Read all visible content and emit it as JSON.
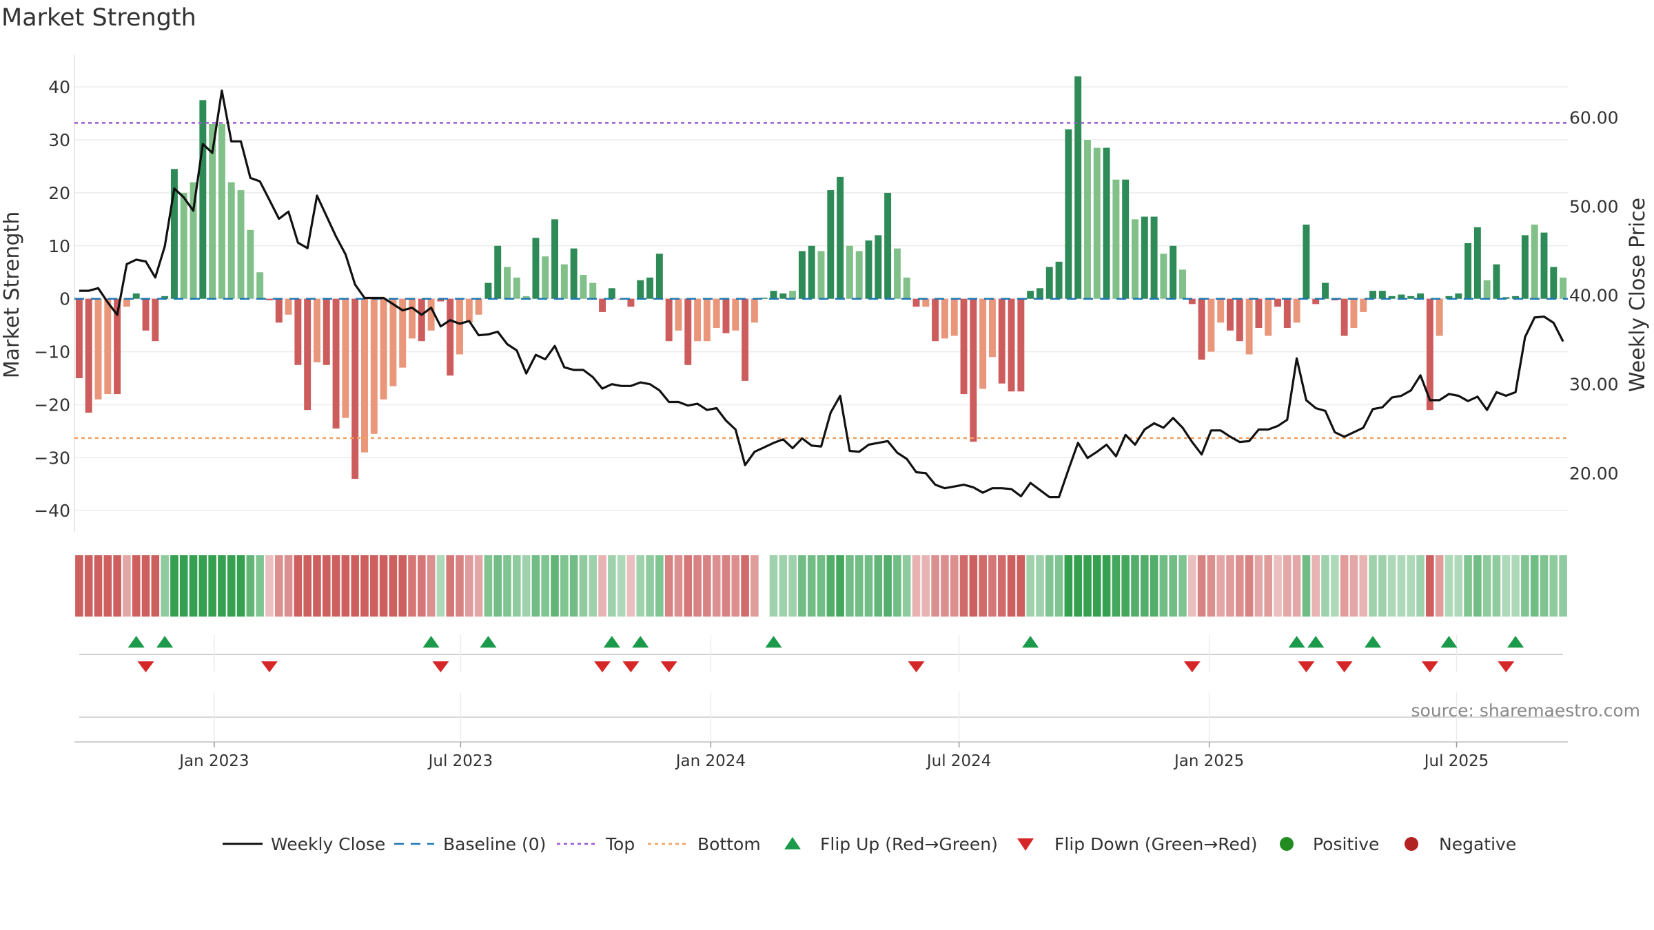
{
  "chart_data": {
    "type": "bar",
    "title": "Market Strength",
    "ylabel": "Market Strength",
    "y2label": "Weekly Close Price",
    "source": "source: sharemaestro.com",
    "ylim": [
      -44,
      46
    ],
    "y2lim": [
      13.4,
      67.0
    ],
    "yticks": [
      "40",
      "30",
      "20",
      "10",
      "0",
      "−10",
      "−20",
      "−30",
      "−40"
    ],
    "yticks_values": [
      40,
      30,
      20,
      10,
      0,
      -10,
      -20,
      -30,
      -40
    ],
    "y2ticks": [
      "60.00",
      "50.00",
      "40.00",
      "30.00",
      "20.00"
    ],
    "y2ticks_values": [
      60,
      50,
      40,
      30,
      20
    ],
    "xticks": [
      "Jan 2023",
      "Jul 2023",
      "Jan 2024",
      "Jul 2024",
      "Jan 2025",
      "Jul 2025"
    ],
    "xticks_index": [
      14.2,
      40.1,
      66.4,
      92.5,
      118.8,
      144.8
    ],
    "top_line": 33.2,
    "bottom_line": -26.3,
    "baseline": 0,
    "colors": {
      "pos_strong": "#2e8b57",
      "pos_weak": "#82c08a",
      "neg_strong": "#cd5c5c",
      "neg_weak": "#e9967a",
      "close": "#111111",
      "baseline": "#1f77b4",
      "top": "#9b59d0",
      "bottom": "#f0a060",
      "flip_up": "#1a9a4a",
      "flip_down": "#d62728",
      "positive": "#228b22",
      "negative": "#b22222"
    },
    "strength": [
      -15,
      -21.5,
      -19,
      -18,
      -18,
      -1.5,
      1,
      -6,
      -8,
      0.5,
      24.5,
      20,
      22,
      37.5,
      33,
      33,
      22,
      20.5,
      13,
      5,
      -0.3,
      -4.5,
      -3,
      -12.5,
      -21,
      -12,
      -12.5,
      -24.5,
      -22.5,
      -34,
      -29,
      -25.5,
      -19,
      -16.5,
      -13,
      -7.5,
      -8,
      -6,
      -0.5,
      -14.5,
      -10.5,
      -4.5,
      -3,
      3,
      10,
      6,
      4,
      0.5,
      11.5,
      8,
      15,
      6.5,
      9.5,
      4.5,
      3,
      -2.5,
      2,
      -0.2,
      -1.5,
      3.5,
      4,
      8.5,
      -8,
      -6,
      -12.5,
      -8,
      -8,
      -5.5,
      -6.5,
      -6,
      -15.5,
      -4.5,
      0.2,
      1.5,
      1,
      1.5,
      9,
      10,
      9,
      20.5,
      23,
      10,
      9,
      11,
      12,
      20,
      9.5,
      4,
      -1.5,
      -1.5,
      -8,
      -7.5,
      -7,
      -18,
      -27,
      -17,
      -11,
      -16,
      -17.5,
      -17.5,
      1.5,
      2,
      6,
      7,
      32,
      42,
      30,
      28.5,
      28.5,
      22.5,
      22.5,
      15,
      15.5,
      15.5,
      8.5,
      10,
      5.5,
      -1,
      -11.5,
      -10,
      -4.5,
      -6,
      -8,
      -10.5,
      -5.5,
      -7,
      -1.5,
      -5.5,
      -4.5,
      14,
      -1,
      3,
      -0.3,
      -7,
      -5.5,
      -2.5,
      1.5,
      1.5,
      0.5,
      0.8,
      0.5,
      1,
      -21,
      -7,
      0.5,
      1,
      10.5,
      13.5,
      3.5,
      6.5,
      0.3,
      0.5,
      12,
      14,
      12.5,
      6,
      4
    ],
    "strong": [
      1,
      1,
      0,
      0,
      1,
      0,
      1,
      1,
      1,
      1,
      1,
      0,
      0,
      1,
      0,
      0,
      0,
      0,
      0,
      0,
      1,
      1,
      0,
      1,
      1,
      0,
      1,
      1,
      0,
      1,
      0,
      0,
      0,
      0,
      0,
      0,
      1,
      0,
      1,
      1,
      0,
      0,
      0,
      1,
      1,
      0,
      0,
      0,
      1,
      0,
      1,
      0,
      1,
      0,
      0,
      1,
      1,
      0,
      1,
      1,
      1,
      1,
      1,
      0,
      1,
      0,
      0,
      0,
      1,
      0,
      1,
      0,
      1,
      1,
      1,
      0,
      1,
      1,
      0,
      1,
      1,
      0,
      0,
      1,
      1,
      1,
      0,
      0,
      1,
      0,
      1,
      0,
      0,
      1,
      1,
      0,
      0,
      1,
      1,
      1,
      1,
      1,
      1,
      1,
      1,
      1,
      0,
      0,
      1,
      0,
      1,
      0,
      1,
      1,
      0,
      1,
      0,
      1,
      1,
      0,
      0,
      1,
      1,
      0,
      1,
      0,
      1,
      1,
      0,
      1,
      1,
      1,
      1,
      1,
      0,
      0,
      1,
      1,
      1,
      1,
      1,
      1,
      1,
      0,
      1,
      1,
      1,
      1,
      0,
      1,
      1,
      1,
      1,
      0,
      1,
      1,
      0,
      1,
      0
    ],
    "close": [
      40.5,
      40.5,
      40.8,
      39.2,
      37.8,
      43.5,
      44,
      43.8,
      42,
      45.5,
      52,
      51,
      49.5,
      57,
      56,
      63,
      57.3,
      57.3,
      53.2,
      52.8,
      50.7,
      48.6,
      49.4,
      45.9,
      45.3,
      51.2,
      48.9,
      46.6,
      44.6,
      41.2,
      39.7,
      39.7,
      39.7,
      39,
      38.3,
      38.6,
      37.8,
      38.6,
      36.5,
      37.2,
      36.8,
      37.1,
      35.5,
      35.6,
      35.9,
      34.5,
      33.8,
      31.2,
      33.3,
      32.8,
      34.3,
      31.9,
      31.6,
      31.6,
      30.8,
      29.5,
      30,
      29.8,
      29.8,
      30.2,
      30,
      29.3,
      28,
      28,
      27.6,
      27.8,
      27.1,
      27.3,
      25.9,
      24.9,
      20.9,
      22.4,
      22.9,
      23.4,
      23.8,
      22.8,
      23.9,
      23.1,
      23,
      26.8,
      28.7,
      22.5,
      22.4,
      23.2,
      23.4,
      23.6,
      22.3,
      21.6,
      20.1,
      20,
      18.7,
      18.3,
      18.5,
      18.7,
      18.4,
      17.8,
      18.3,
      18.3,
      18.2,
      17.4,
      18.9,
      18.1,
      17.3,
      17.3,
      20.4,
      23.4,
      21.7,
      22.4,
      23.2,
      21.9,
      24.3,
      23.2,
      24.9,
      25.6,
      25.1,
      26.2,
      25.1,
      23.5,
      22.1,
      24.8,
      24.8,
      24.1,
      23.5,
      23.6,
      24.9,
      24.9,
      25.3,
      26,
      32.9,
      28.2,
      27.3,
      27,
      24.6,
      24.1,
      24.6,
      25.1,
      27.2,
      27.4,
      28.5,
      28.7,
      29.3,
      31,
      28.2,
      28.2,
      28.9,
      28.7,
      28.1,
      28.6,
      27.1,
      29.1,
      28.7,
      29.1,
      35.3,
      37.5,
      37.6,
      36.9,
      34.8
    ],
    "heat": [
      -1,
      -1,
      -1,
      -1,
      -1,
      -0.4,
      -1,
      -1,
      -1,
      0.4,
      1,
      1,
      1,
      1,
      1,
      1,
      1,
      1,
      0.7,
      0.5,
      -0.2,
      -0.6,
      -0.6,
      -1,
      -1,
      -1,
      -1,
      -1,
      -1,
      -1,
      -1,
      -1,
      -1,
      -1,
      -1,
      -0.8,
      -0.8,
      -0.6,
      0.2,
      -0.8,
      -0.7,
      -0.5,
      -0.4,
      0.5,
      0.6,
      0.5,
      0.4,
      0.3,
      0.6,
      0.5,
      0.7,
      0.5,
      0.6,
      0.4,
      0.3,
      -0.3,
      0.3,
      0.2,
      -0.2,
      0.3,
      0.4,
      0.5,
      -0.7,
      -0.6,
      -0.8,
      -0.7,
      -0.7,
      -0.6,
      -0.7,
      -0.6,
      -0.9,
      -0.5,
      null,
      0.3,
      0.3,
      0.3,
      0.6,
      0.6,
      0.6,
      0.8,
      0.9,
      0.6,
      0.6,
      0.6,
      0.7,
      0.8,
      0.6,
      0.4,
      -0.3,
      -0.3,
      -0.6,
      -0.6,
      -0.6,
      -0.9,
      -1,
      -0.9,
      -0.8,
      -0.9,
      -1,
      -1,
      0.3,
      0.3,
      0.5,
      0.5,
      1,
      1,
      1,
      1,
      1,
      0.9,
      0.9,
      0.8,
      0.8,
      0.8,
      0.6,
      0.6,
      0.5,
      -0.2,
      -0.7,
      -0.6,
      -0.4,
      -0.5,
      -0.6,
      -0.7,
      -0.4,
      -0.5,
      -0.2,
      -0.4,
      -0.4,
      0.6,
      -0.3,
      0.3,
      0.2,
      -0.5,
      -0.4,
      -0.3,
      0.3,
      0.3,
      0.2,
      0.2,
      0.2,
      0.3,
      -1,
      -0.5,
      0.2,
      0.2,
      0.5,
      0.6,
      0.4,
      0.4,
      0.2,
      0.2,
      0.5,
      0.6,
      0.5,
      0.4,
      0.4
    ],
    "flip_up": [
      6,
      9,
      37,
      43,
      56,
      59,
      73,
      100,
      128,
      130,
      136,
      144,
      151
    ],
    "flip_down": [
      7,
      20,
      38,
      55,
      58,
      62,
      88,
      117,
      129,
      133,
      142,
      150
    ],
    "legend": [
      "Weekly Close",
      "Baseline (0)",
      "Top",
      "Bottom",
      "Flip Up (Red→Green)",
      "Flip Down (Green→Red)",
      "Positive",
      "Negative"
    ]
  }
}
